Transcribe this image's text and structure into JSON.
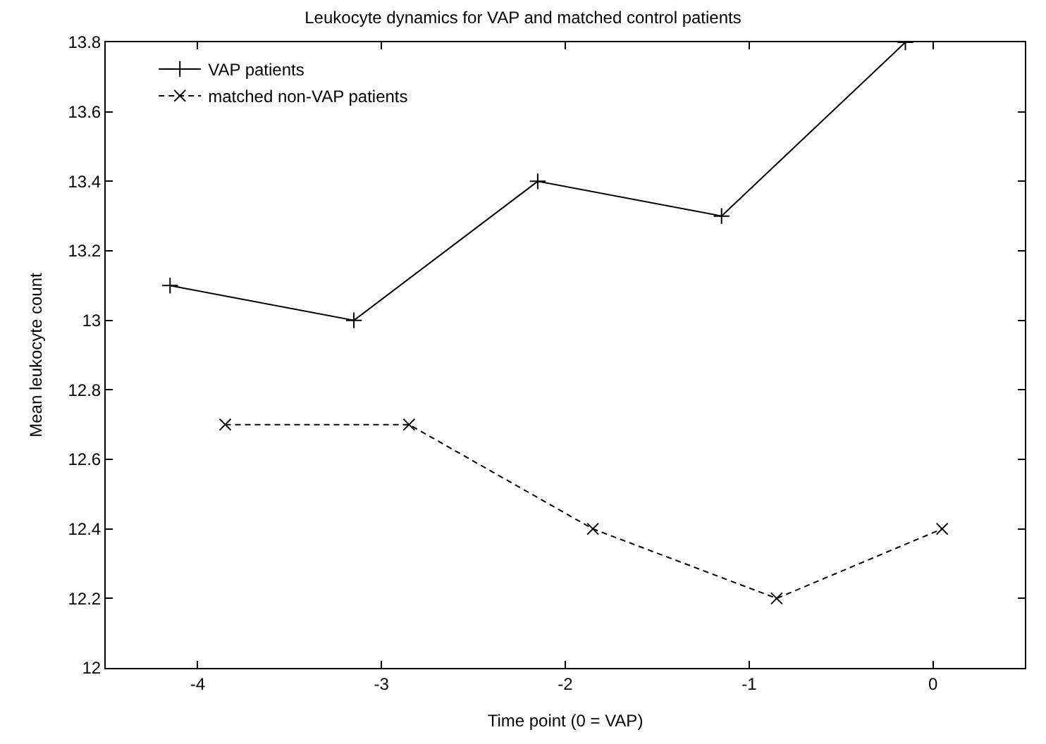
{
  "chart_data": {
    "type": "line",
    "title": "Leukocyte dynamics for VAP and matched control patients",
    "xlabel": "Time point (0 = VAP)",
    "ylabel": "Mean leukocyte count",
    "xlim": [
      -4.5,
      0.5
    ],
    "xticks": [
      -4,
      -3,
      -2,
      -1,
      0
    ],
    "ylim": [
      12,
      13.8
    ],
    "yticks": [
      12,
      12.2,
      12.4,
      12.6,
      12.8,
      13,
      13.2,
      13.4,
      13.6,
      13.8
    ],
    "legend": "top left",
    "series": [
      {
        "name": "VAP patients",
        "color": "#000000",
        "x": [
          -4.15,
          -3.15,
          -2.15,
          -1.15,
          -0.15
        ],
        "values": [
          13.1,
          13.0,
          13.4,
          13.3,
          13.8
        ],
        "marker": "cross",
        "line_style": "solid"
      },
      {
        "name": "matched non-VAP patients",
        "color": "#000000",
        "x": [
          -3.85,
          -2.85,
          -1.85,
          -0.85,
          0.05
        ],
        "values": [
          12.7,
          12.7,
          12.4,
          12.2,
          12.4
        ],
        "marker": "x",
        "line_style": "dashed"
      }
    ]
  }
}
